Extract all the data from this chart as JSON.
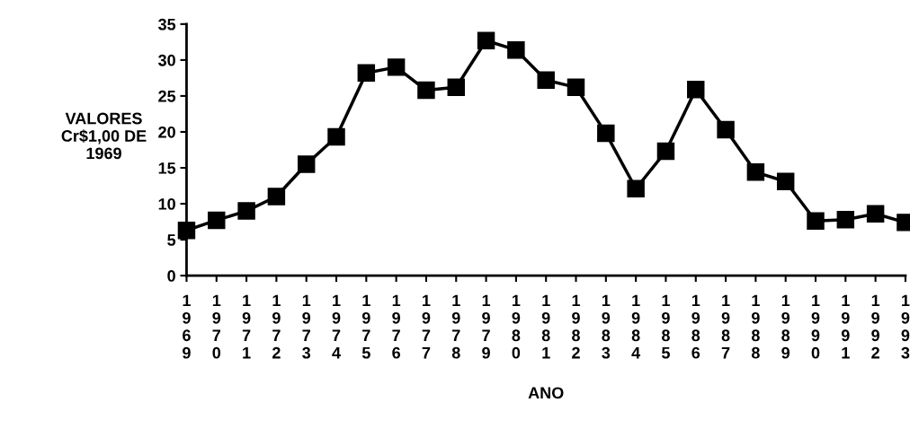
{
  "chart_data": {
    "type": "line",
    "xlabel": "ANO",
    "ylabel": "VALORES\nCr$1,00 DE\n1969",
    "categories": [
      "1969",
      "1970",
      "1971",
      "1972",
      "1973",
      "1974",
      "1975",
      "1976",
      "1977",
      "1978",
      "1979",
      "1980",
      "1981",
      "1982",
      "1983",
      "1984",
      "1985",
      "1986",
      "1987",
      "1988",
      "1989",
      "1990",
      "1991",
      "1992",
      "1993"
    ],
    "series": [
      {
        "color": "#000000",
        "values": [
          6.3,
          7.7,
          9.0,
          11.0,
          15.5,
          19.3,
          28.2,
          29.0,
          25.8,
          26.2,
          32.7,
          31.4,
          27.2,
          26.2,
          19.8,
          12.1,
          17.3,
          25.9,
          20.3,
          14.4,
          13.1,
          7.6,
          7.8,
          8.6,
          7.4
        ]
      }
    ],
    "ylim": [
      0,
      35
    ],
    "yticks": [
      0,
      5,
      10,
      15,
      20,
      25,
      30,
      35
    ],
    "grid": false,
    "legend": false,
    "marker": "square",
    "line_style": "solid"
  }
}
